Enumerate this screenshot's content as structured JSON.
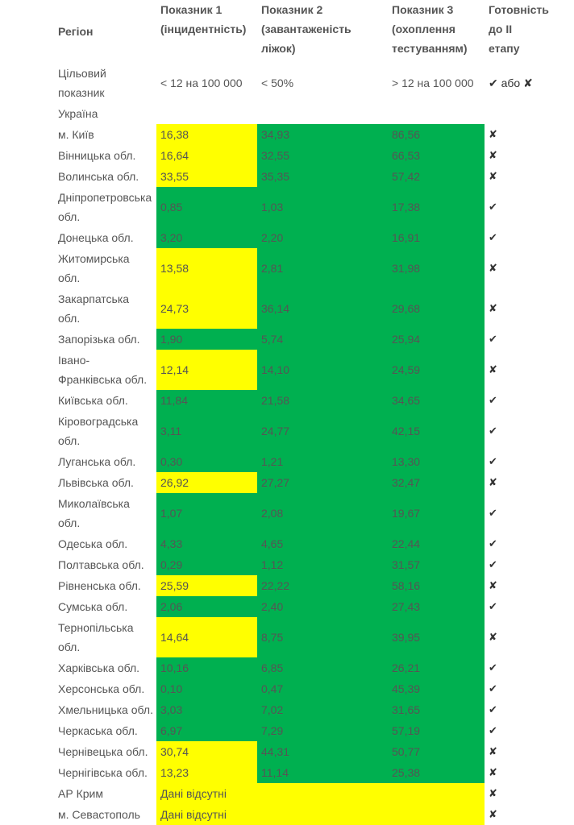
{
  "headers": {
    "region": "Регіон",
    "ind1_line1": "Показник 1",
    "ind1_line2": "(інцидентність)",
    "ind2_line1": "Показник 2",
    "ind2_line2": "(завантаженість ліжок)",
    "ind3_line1": "Показник 3",
    "ind3_line2": "(охоплення",
    "ind3_line3": "тестуванням)",
    "ready_line1": "Готовність",
    "ready_line2": "до ІІ",
    "ready_line3": "етапу"
  },
  "target": {
    "label_line1": "Цільовий",
    "label_line2": "показник",
    "ind1": "< 12 на 100 000",
    "ind2": "< 50%",
    "ind3": "> 12 на 100 000",
    "ready": "✔ або ✘"
  },
  "country": "Україна",
  "colors": {
    "fail": "#ffff00",
    "pass": "#00b050"
  },
  "rows": [
    {
      "name_line1": "м. Київ",
      "name_line2": "",
      "i1": "16,38",
      "i2": "34,93",
      "i3": "86,56",
      "c1": "y",
      "c2": "g",
      "c3": "g",
      "ready": "✘"
    },
    {
      "name_line1": "Вінницька обл.",
      "name_line2": "",
      "i1": "16,64",
      "i2": "32,55",
      "i3": "66,53",
      "c1": "y",
      "c2": "g",
      "c3": "g",
      "ready": "✘"
    },
    {
      "name_line1": "Волинська обл.",
      "name_line2": "",
      "i1": "33,55",
      "i2": "35,35",
      "i3": "57,42",
      "c1": "y",
      "c2": "g",
      "c3": "g",
      "ready": "✘"
    },
    {
      "name_line1": "Дніпропетровська",
      "name_line2": "обл.",
      "i1": "0,85",
      "i2": "1,03",
      "i3": "17,38",
      "c1": "g",
      "c2": "g",
      "c3": "g",
      "ready": "✔"
    },
    {
      "name_line1": "Донецька обл.",
      "name_line2": "",
      "i1": "3,20",
      "i2": "2,20",
      "i3": "16,91",
      "c1": "g",
      "c2": "g",
      "c3": "g",
      "ready": "✔"
    },
    {
      "name_line1": "Житомирська",
      "name_line2": "обл.",
      "i1": "13,58",
      "i2": "2,81",
      "i3": "31,98",
      "c1": "y",
      "c2": "g",
      "c3": "g",
      "ready": "✘"
    },
    {
      "name_line1": "Закарпатська",
      "name_line2": "обл.",
      "i1": "24,73",
      "i2": "36,14",
      "i3": "29,68",
      "c1": "y",
      "c2": "g",
      "c3": "g",
      "ready": "✘"
    },
    {
      "name_line1": "Запорізька обл.",
      "name_line2": "",
      "i1": "1,90",
      "i2": "5,74",
      "i3": "25,94",
      "c1": "g",
      "c2": "g",
      "c3": "g",
      "ready": "✔"
    },
    {
      "name_line1": "Івано-",
      "name_line2": "Франківська обл.",
      "i1": "12,14",
      "i2": "14,10",
      "i3": "24,59",
      "c1": "y",
      "c2": "g",
      "c3": "g",
      "ready": "✘"
    },
    {
      "name_line1": "Київська обл.",
      "name_line2": "",
      "i1": "11,84",
      "i2": "21,58",
      "i3": "34,65",
      "c1": "g",
      "c2": "g",
      "c3": "g",
      "ready": "✔"
    },
    {
      "name_line1": "Кіровоградська",
      "name_line2": "обл.",
      "i1": "3,11",
      "i2": "24,77",
      "i3": "42,15",
      "c1": "g",
      "c2": "g",
      "c3": "g",
      "ready": "✔"
    },
    {
      "name_line1": "Луганська обл.",
      "name_line2": "",
      "i1": "0,30",
      "i2": "1,21",
      "i3": "13,30",
      "c1": "g",
      "c2": "g",
      "c3": "g",
      "ready": "✔"
    },
    {
      "name_line1": "Львівська обл.",
      "name_line2": "",
      "i1": "26,92",
      "i2": "27,27",
      "i3": "32,47",
      "c1": "y",
      "c2": "g",
      "c3": "g",
      "ready": "✘"
    },
    {
      "name_line1": "Миколаївська",
      "name_line2": "обл.",
      "i1": "1,07",
      "i2": "2,08",
      "i3": "19,67",
      "c1": "g",
      "c2": "g",
      "c3": "g",
      "ready": "✔"
    },
    {
      "name_line1": "Одеська обл.",
      "name_line2": "",
      "i1": "4,33",
      "i2": "4,65",
      "i3": "22,44",
      "c1": "g",
      "c2": "g",
      "c3": "g",
      "ready": "✔"
    },
    {
      "name_line1": "Полтавська обл.",
      "name_line2": "",
      "i1": "0,29",
      "i2": "1,12",
      "i3": "31,57",
      "c1": "g",
      "c2": "g",
      "c3": "g",
      "ready": "✔"
    },
    {
      "name_line1": "Рівненська обл.",
      "name_line2": "",
      "i1": "25,59",
      "i2": "22,22",
      "i3": "58,16",
      "c1": "y",
      "c2": "g",
      "c3": "g",
      "ready": "✘"
    },
    {
      "name_line1": "Сумська обл.",
      "name_line2": "",
      "i1": "2,06",
      "i2": "2,40",
      "i3": "27,43",
      "c1": "g",
      "c2": "g",
      "c3": "g",
      "ready": "✔"
    },
    {
      "name_line1": "Тернопільська",
      "name_line2": "обл.",
      "i1": "14,64",
      "i2": "8,75",
      "i3": "39,95",
      "c1": "y",
      "c2": "g",
      "c3": "g",
      "ready": "✘"
    },
    {
      "name_line1": "Харківська обл.",
      "name_line2": "",
      "i1": "10,16",
      "i2": "6,85",
      "i3": "26,21",
      "c1": "g",
      "c2": "g",
      "c3": "g",
      "ready": "✔"
    },
    {
      "name_line1": "Херсонська обл.",
      "name_line2": "",
      "i1": "0,10",
      "i2": "0,47",
      "i3": "45,39",
      "c1": "g",
      "c2": "g",
      "c3": "g",
      "ready": "✔"
    },
    {
      "name_line1": "Хмельницька обл.",
      "name_line2": "",
      "i1": "3,03",
      "i2": "7,02",
      "i3": "31,65",
      "c1": "g",
      "c2": "g",
      "c3": "g",
      "ready": "✔"
    },
    {
      "name_line1": "Черкаська обл.",
      "name_line2": "",
      "i1": "6,97",
      "i2": "7,29",
      "i3": "57,19",
      "c1": "g",
      "c2": "g",
      "c3": "g",
      "ready": "✔"
    },
    {
      "name_line1": "Чернівецька обл.",
      "name_line2": "",
      "i1": "30,74",
      "i2": "44,31",
      "i3": "50,77",
      "c1": "y",
      "c2": "g",
      "c3": "g",
      "ready": "✘"
    },
    {
      "name_line1": "Чернігівська обл.",
      "name_line2": "",
      "i1": "13,23",
      "i2": "11,14",
      "i3": "25,38",
      "c1": "y",
      "c2": "g",
      "c3": "g",
      "ready": "✘"
    }
  ],
  "no_data_rows": [
    {
      "name": "АР Крим",
      "text": "Дані відсутні",
      "ready": "✘"
    },
    {
      "name": "м. Севастополь",
      "text": "Дані відсутні",
      "ready": "✘"
    }
  ]
}
